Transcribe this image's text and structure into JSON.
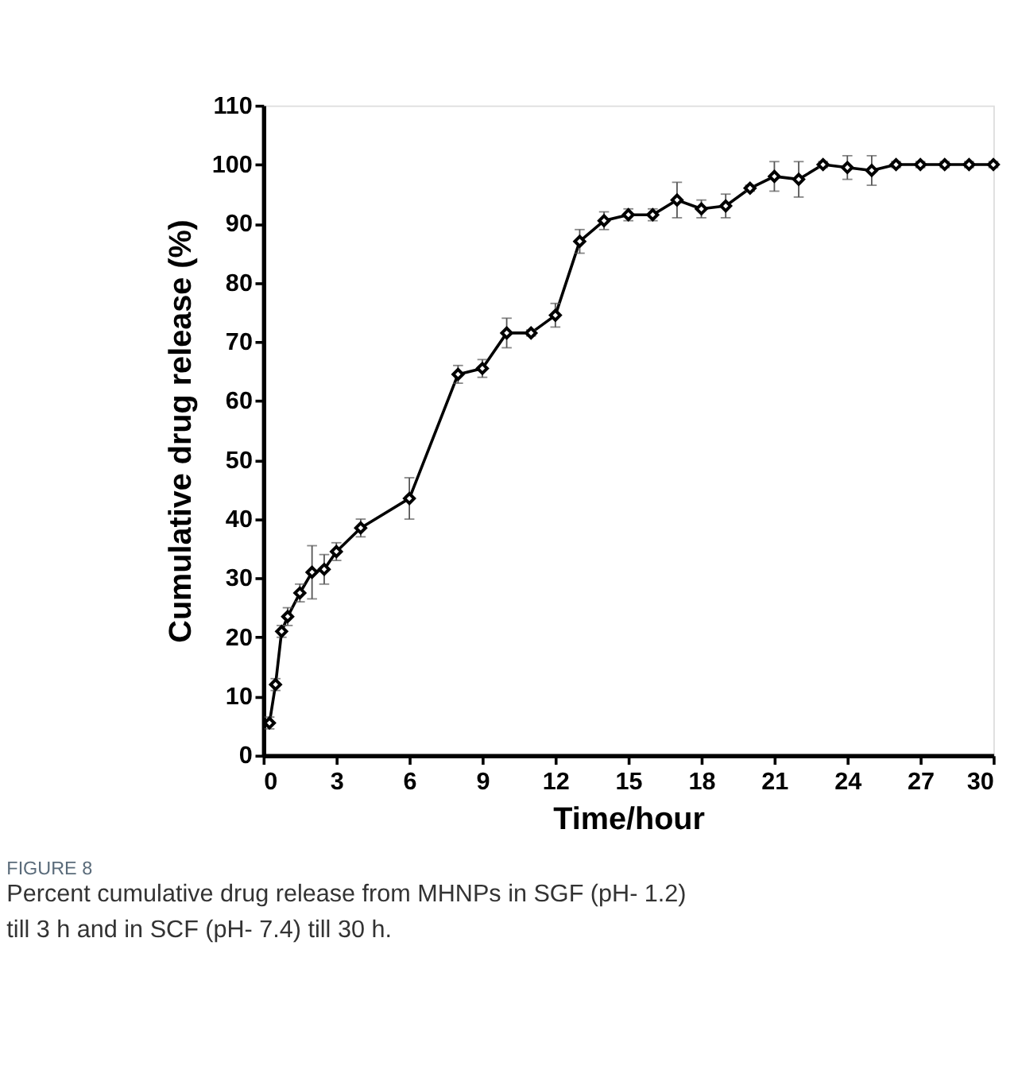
{
  "chart_data": {
    "type": "line",
    "xlabel": "Time/hour",
    "ylabel": "Cumulative drug release (%)",
    "x": [
      0.25,
      0.5,
      0.75,
      1,
      1.5,
      2,
      2.5,
      3,
      4,
      6,
      8,
      9,
      10,
      11,
      12,
      13,
      14,
      15,
      16,
      17,
      18,
      19,
      20,
      21,
      22,
      23,
      24,
      25,
      26,
      27,
      28,
      29,
      30
    ],
    "series": [
      {
        "color": "#000000",
        "values": [
          5.5,
          12,
          21,
          23.5,
          27.5,
          31,
          31.5,
          34.5,
          38.5,
          43.5,
          64.5,
          65.5,
          71.5,
          71.5,
          74.5,
          87,
          90.5,
          91.5,
          91.5,
          94,
          92.5,
          93,
          96,
          98,
          97.5,
          100,
          99.5,
          99,
          100,
          100,
          100,
          100,
          100
        ],
        "errors": [
          1,
          1,
          1,
          1.5,
          1.5,
          4.5,
          2.5,
          1.5,
          1.5,
          3.5,
          1.5,
          1.5,
          2.5,
          0.5,
          2,
          2,
          1.5,
          1,
          1,
          3,
          1.5,
          2,
          0.5,
          2.5,
          3,
          0.5,
          2,
          2.5,
          0.5,
          0.5,
          0.5,
          0.5,
          0.5
        ]
      }
    ],
    "xlim": [
      0,
      30
    ],
    "xticks": [
      0,
      3,
      6,
      9,
      12,
      15,
      18,
      21,
      24,
      27,
      30
    ],
    "ylim": [
      0,
      110
    ],
    "yticks": [
      0,
      10,
      20,
      30,
      40,
      50,
      60,
      70,
      80,
      90,
      100,
      110
    ],
    "marker": "diamond",
    "line_style": "solid",
    "grid": false,
    "annotations": [
      "FIGURE 8",
      "Percent cumulative drug release from MHNPs in SGF (pH- 1.2) till 3 h and in SCF (pH- 7.4) till 30 h."
    ]
  }
}
